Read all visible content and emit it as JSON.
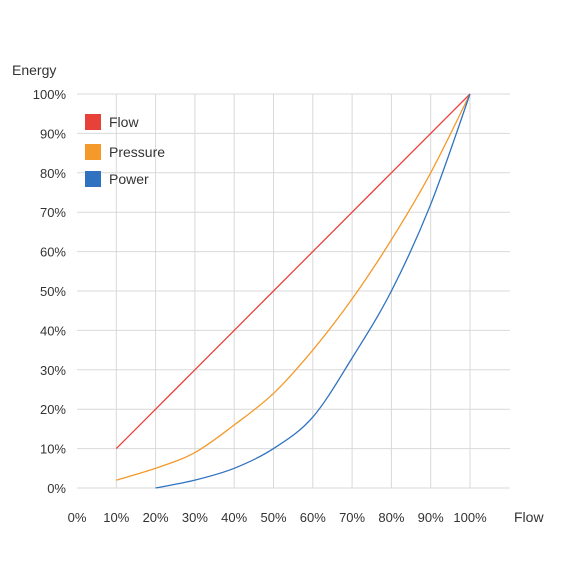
{
  "chart_data": {
    "type": "line",
    "x_label": "Flow",
    "y_label": "Energy",
    "xlim": [
      0,
      100
    ],
    "ylim": [
      0,
      100
    ],
    "grid": true,
    "legend_position": "top-left",
    "x_ticks": [
      "0%",
      "10%",
      "20%",
      "30%",
      "40%",
      "50%",
      "60%",
      "70%",
      "80%",
      "90%",
      "100%"
    ],
    "y_ticks": [
      "0%",
      "10%",
      "20%",
      "30%",
      "40%",
      "50%",
      "60%",
      "70%",
      "80%",
      "90%",
      "100%"
    ],
    "series": [
      {
        "name": "Flow",
        "color": "#e8413a",
        "x": [
          10,
          20,
          30,
          40,
          50,
          60,
          70,
          80,
          90,
          100
        ],
        "y": [
          10,
          20,
          30,
          40,
          50,
          60,
          70,
          80,
          90,
          100
        ]
      },
      {
        "name": "Pressure",
        "color": "#f39a2b",
        "x": [
          10,
          20,
          30,
          40,
          50,
          60,
          70,
          80,
          90,
          100
        ],
        "y": [
          2,
          5,
          9,
          16,
          24,
          35,
          48,
          63,
          80,
          100
        ]
      },
      {
        "name": "Power",
        "color": "#2f72c0",
        "x": [
          20,
          30,
          40,
          50,
          60,
          70,
          80,
          90,
          100
        ],
        "y": [
          0,
          2,
          5,
          10,
          18,
          33,
          50,
          72,
          100
        ]
      }
    ]
  }
}
